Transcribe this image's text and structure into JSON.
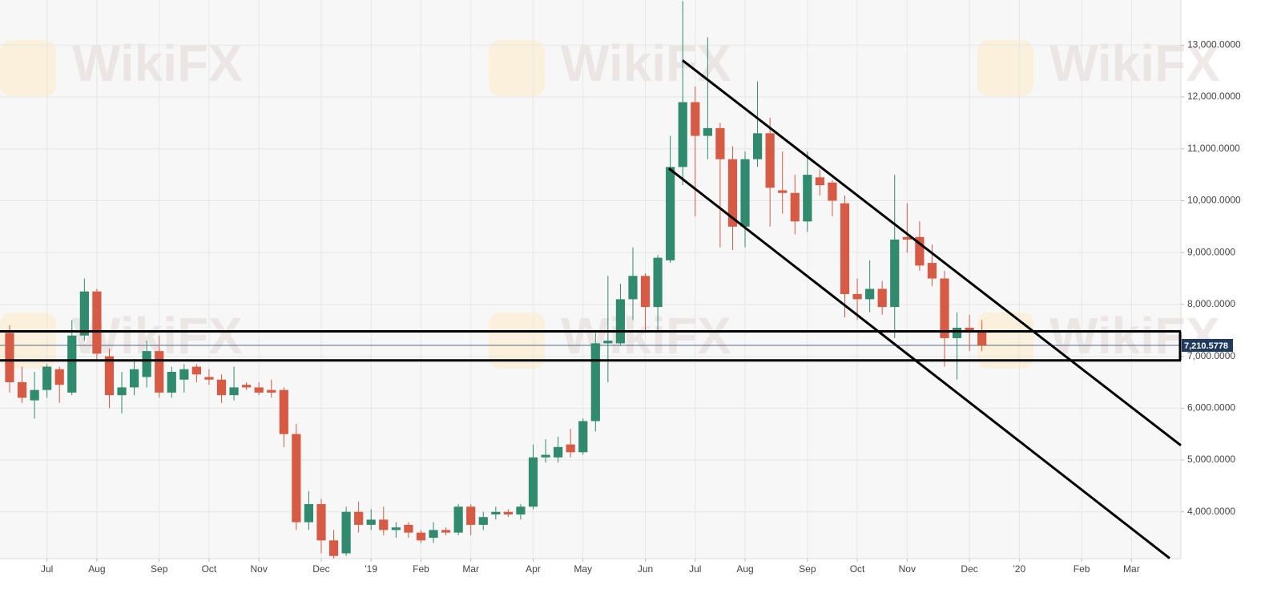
{
  "chart_data": {
    "type": "candlestick",
    "watermark": "WikiFX",
    "x": [
      0,
      1,
      2,
      3,
      4,
      5,
      6,
      7,
      8,
      9,
      10,
      11,
      12,
      13,
      14,
      15,
      16,
      17,
      18,
      19,
      20,
      21,
      22,
      23,
      24,
      25,
      26,
      27,
      28,
      29,
      30,
      31,
      32,
      33,
      34,
      35,
      36,
      37,
      38,
      39,
      40,
      41,
      42,
      43,
      44,
      45,
      46,
      47,
      48,
      49,
      50,
      51,
      52,
      53,
      54,
      55,
      56,
      57,
      58,
      59,
      60,
      61,
      62,
      63,
      64,
      65,
      66,
      67,
      68,
      69,
      70,
      71,
      72,
      73,
      74,
      75,
      76,
      77,
      78
    ],
    "open": [
      7450,
      6500,
      6150,
      6350,
      6750,
      6300,
      7400,
      8250,
      7000,
      6250,
      6400,
      6600,
      7100,
      6300,
      6550,
      6800,
      6600,
      6550,
      6250,
      6450,
      6400,
      6350,
      6350,
      5500,
      3800,
      4150,
      3450,
      3200,
      4000,
      3750,
      3850,
      3650,
      3750,
      3600,
      3500,
      3650,
      3600,
      4100,
      3750,
      3950,
      4000,
      3950,
      4100,
      5050,
      5050,
      5300,
      5150,
      5750,
      7250,
      7250,
      8100,
      8550,
      7950,
      8850,
      10650,
      11900,
      11250,
      11400,
      10800,
      9500,
      10800,
      11300,
      10200,
      10150,
      9600,
      10450,
      10350,
      9950,
      8200,
      8100,
      8300,
      7950,
      9300,
      9300,
      8800,
      8500,
      7350,
      7550,
      7500
    ],
    "high": [
      7600,
      6800,
      6700,
      6850,
      6800,
      7700,
      8500,
      8300,
      7150,
      6700,
      6950,
      7300,
      7400,
      6800,
      6850,
      6850,
      6750,
      6650,
      6800,
      6500,
      6500,
      6550,
      6400,
      5700,
      4400,
      4250,
      3650,
      4100,
      4200,
      4050,
      4100,
      3800,
      3800,
      3650,
      3800,
      3700,
      4150,
      4150,
      4000,
      4100,
      4050,
      4150,
      5300,
      5400,
      5450,
      5600,
      5800,
      7450,
      8550,
      8400,
      9100,
      8600,
      8950,
      11250,
      13850,
      12200,
      13150,
      11500,
      11050,
      10950,
      12300,
      11600,
      10950,
      10500,
      10950,
      10600,
      10400,
      10100,
      8500,
      8850,
      8450,
      10500,
      9950,
      9600,
      9150,
      8650,
      7850,
      7800,
      7700
    ],
    "low": [
      6300,
      6100,
      5800,
      6200,
      6100,
      6250,
      7300,
      6900,
      6000,
      5900,
      6250,
      6400,
      6200,
      6200,
      6300,
      6500,
      6450,
      6100,
      6150,
      6350,
      6250,
      6200,
      5250,
      3650,
      3650,
      3200,
      3100,
      3150,
      3600,
      3650,
      3550,
      3500,
      3500,
      3400,
      3400,
      3550,
      3550,
      3550,
      3650,
      3850,
      3900,
      3850,
      4050,
      4950,
      4950,
      5050,
      5100,
      5550,
      6500,
      7200,
      7700,
      7500,
      7500,
      8800,
      10300,
      9700,
      10800,
      9100,
      9050,
      9100,
      10650,
      9500,
      9750,
      9350,
      9400,
      10100,
      9700,
      7750,
      7700,
      7850,
      7800,
      7350,
      9000,
      8650,
      8350,
      6800,
      6550,
      7100,
      7100
    ],
    "close": [
      6500,
      6200,
      6350,
      6800,
      6450,
      7400,
      8250,
      7050,
      6250,
      6400,
      6750,
      7100,
      6300,
      6700,
      6750,
      6650,
      6550,
      6250,
      6400,
      6400,
      6300,
      6300,
      5500,
      3800,
      4150,
      3450,
      3150,
      4000,
      3750,
      3850,
      3650,
      3700,
      3600,
      3450,
      3650,
      3600,
      4100,
      3750,
      3900,
      4000,
      3950,
      4100,
      5050,
      5100,
      5250,
      5150,
      5750,
      7250,
      7300,
      8100,
      8550,
      7950,
      8900,
      10650,
      11900,
      11250,
      11400,
      10800,
      9500,
      10800,
      11300,
      10250,
      10150,
      9600,
      10500,
      10300,
      10000,
      8200,
      8100,
      8300,
      7950,
      9250,
      9250,
      8750,
      8500,
      7350,
      7550,
      7500,
      7210
    ],
    "up_color": "#2f8a6e",
    "down_color": "#d65a44",
    "xlim": [
      -0.77,
      93.96
    ],
    "ylim": [
      3100,
      13870
    ],
    "xticks": [
      {
        "value": 3,
        "label": "Jul"
      },
      {
        "value": 7,
        "label": "Aug"
      },
      {
        "value": 12,
        "label": "Sep"
      },
      {
        "value": 16,
        "label": "Oct"
      },
      {
        "value": 20,
        "label": "Nov"
      },
      {
        "value": 25,
        "label": "Dec"
      },
      {
        "value": 29,
        "label": "'19"
      },
      {
        "value": 33,
        "label": "Feb"
      },
      {
        "value": 37,
        "label": "Mar"
      },
      {
        "value": 42,
        "label": "Apr"
      },
      {
        "value": 46,
        "label": "May"
      },
      {
        "value": 51,
        "label": "Jun"
      },
      {
        "value": 55,
        "label": "Jul"
      },
      {
        "value": 59,
        "label": "Aug"
      },
      {
        "value": 64,
        "label": "Sep"
      },
      {
        "value": 68,
        "label": "Oct"
      },
      {
        "value": 72,
        "label": "Nov"
      },
      {
        "value": 77,
        "label": "Dec"
      },
      {
        "value": 81,
        "label": "'20"
      },
      {
        "value": 86,
        "label": "Feb"
      },
      {
        "value": 90,
        "label": "Mar"
      }
    ],
    "yticks": [
      {
        "value": 4000,
        "label": "4,000.0000"
      },
      {
        "value": 5000,
        "label": "5,000.0000"
      },
      {
        "value": 6000,
        "label": "6,000.0000"
      },
      {
        "value": 7000,
        "label": "7,000.0000"
      },
      {
        "value": 8000,
        "label": "8,000.0000"
      },
      {
        "value": 9000,
        "label": "9,000.0000"
      },
      {
        "value": 10000,
        "label": "10,000.0000"
      },
      {
        "value": 11000,
        "label": "11,000.0000"
      },
      {
        "value": 12000,
        "label": "12,000.0000"
      },
      {
        "value": 13000,
        "label": "13,000.0000"
      }
    ],
    "grid": true,
    "last_price": {
      "value": 7210.5778,
      "label": "7,210.5778"
    },
    "hlines": [
      7480,
      6920
    ],
    "trendlines": [
      {
        "x": [
          53.98,
          93.96
        ],
        "y": [
          12707,
          5281
        ]
      },
      {
        "x": [
          52.89,
          93.06
        ],
        "y": [
          10623,
          3105
        ]
      }
    ]
  }
}
